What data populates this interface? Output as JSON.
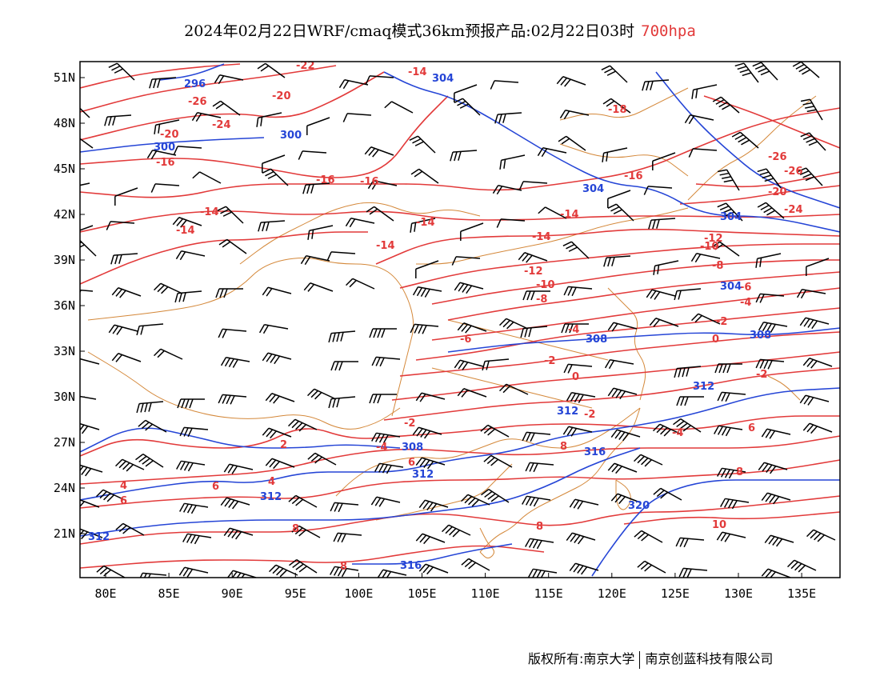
{
  "title": {
    "main": "2024年02月22日WRF/cmaq模式36km预报产品:02月22日03时",
    "level": "700hpa"
  },
  "axes": {
    "lat_labels": [
      "51N",
      "48N",
      "45N",
      "42N",
      "39N",
      "36N",
      "33N",
      "30N",
      "27N",
      "24N",
      "21N"
    ],
    "lon_labels": [
      "80E",
      "85E",
      "90E",
      "95E",
      "100E",
      "105E",
      "110E",
      "115E",
      "120E",
      "125E",
      "130E",
      "135E"
    ]
  },
  "temperature_labels": [
    "-22",
    "-26",
    "-24",
    "-20",
    "-18",
    "-16",
    "-14",
    "-12",
    "-10",
    "-8",
    "-6",
    "-4",
    "-2",
    "0",
    "2",
    "4",
    "6",
    "8",
    "10"
  ],
  "height_labels": [
    "296",
    "300",
    "304",
    "308",
    "312",
    "316",
    "320"
  ],
  "legend_colors": {
    "temperature": "#e23a3a",
    "height": "#2545d6",
    "boundary": "#d4883a",
    "wind": "#000000"
  },
  "footer": {
    "owner": "版权所有:南京大学",
    "company": "南京创蓝科技有限公司"
  }
}
